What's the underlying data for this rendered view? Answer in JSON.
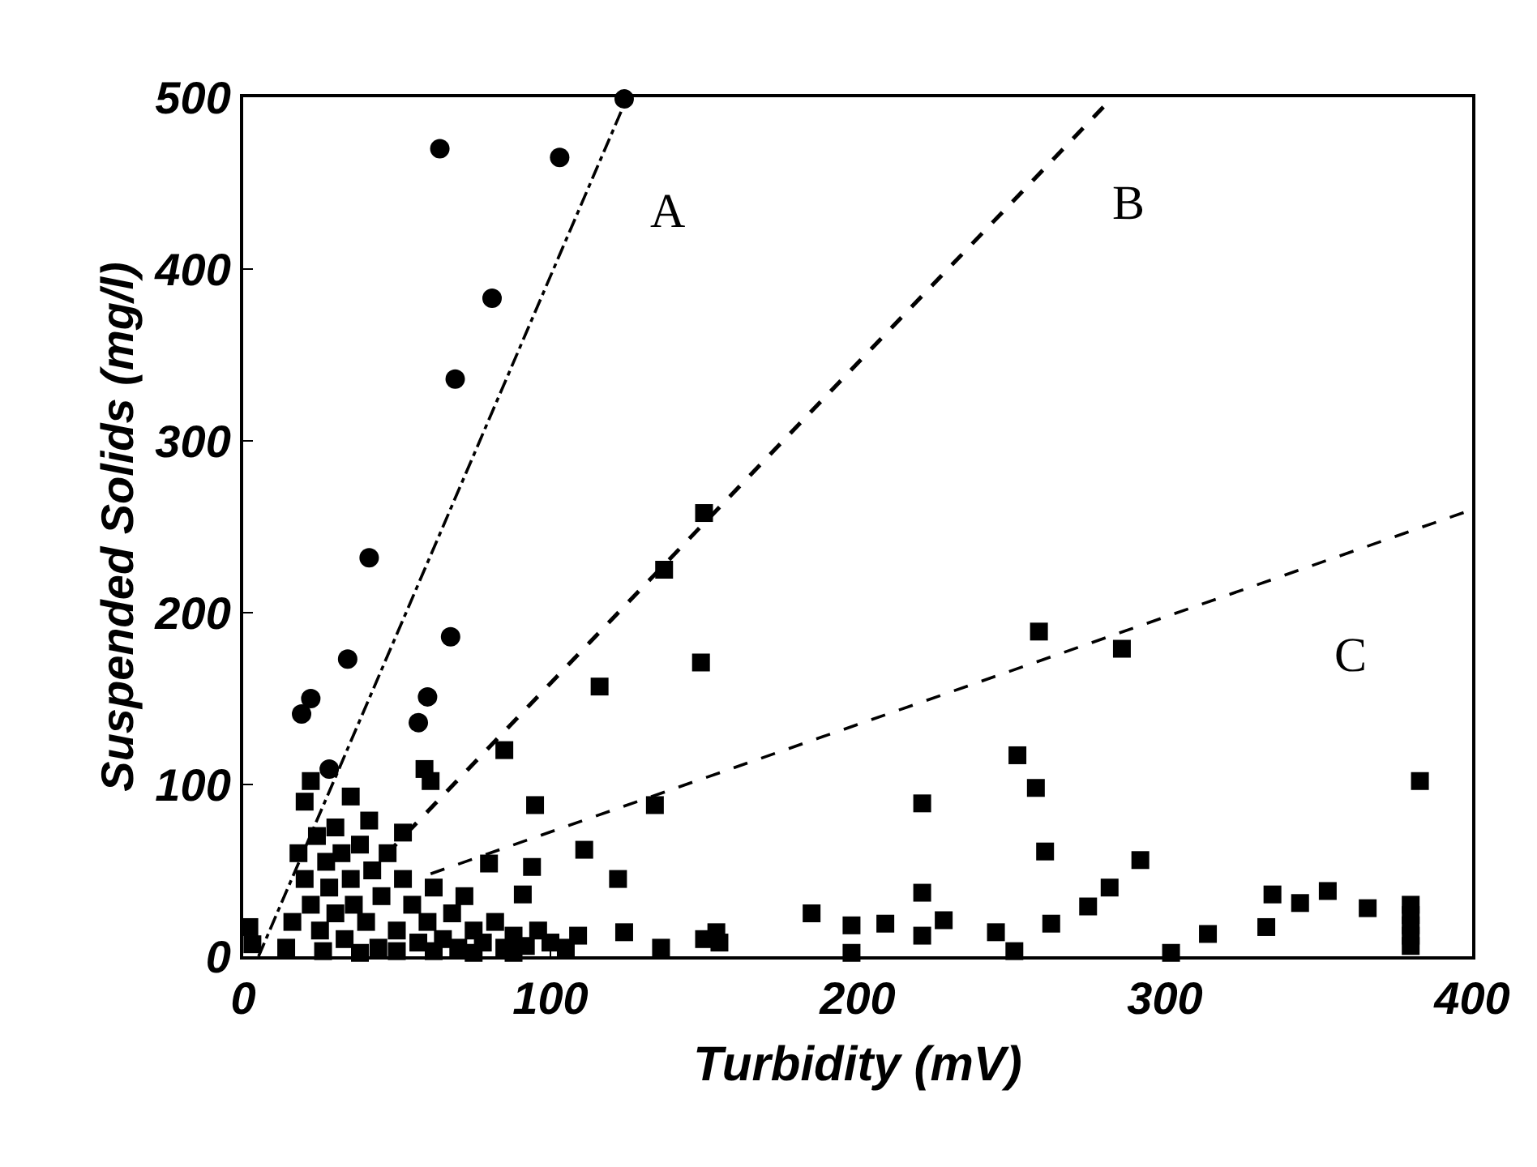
{
  "chart_data": {
    "type": "scatter",
    "xlabel": "Turbidity (mV)",
    "ylabel": "Suspended Solids (mg/l)",
    "xlim": [
      0,
      400
    ],
    "ylim": [
      0,
      500
    ],
    "xticks": [
      0,
      100,
      200,
      300,
      400
    ],
    "yticks": [
      0,
      100,
      200,
      300,
      400,
      500
    ],
    "legend": false,
    "series": [
      {
        "marker": "circle",
        "color": "#000000",
        "x": [
          64,
          103,
          124,
          81,
          69,
          41,
          67.5,
          34,
          22,
          19,
          60,
          57,
          28
        ],
        "values": [
          470,
          465,
          499,
          383,
          336,
          232,
          186,
          173,
          150,
          141,
          151,
          136,
          109
        ]
      },
      {
        "marker": "square",
        "color": "#000000",
        "x": [
          150,
          137,
          149,
          116,
          85,
          95,
          134,
          111,
          94,
          122,
          91,
          80,
          35,
          41,
          52,
          59,
          61,
          22,
          20,
          2,
          3,
          109,
          124,
          136,
          154,
          259,
          286,
          221,
          252,
          258,
          261,
          292,
          383,
          282,
          275,
          221,
          185,
          198,
          198,
          209,
          221,
          228,
          245,
          251,
          263,
          302,
          314,
          333,
          335,
          344,
          353,
          366,
          380,
          380,
          380,
          380,
          380,
          150,
          155,
          18,
          20,
          22,
          24,
          25,
          27,
          28,
          30,
          30,
          32,
          33,
          35,
          36,
          38,
          40,
          42,
          44,
          45,
          47,
          50,
          52,
          55,
          57,
          60,
          62,
          65,
          68,
          70,
          72,
          75,
          78,
          82,
          85,
          88,
          92,
          96,
          100,
          105,
          26,
          38,
          50,
          62,
          75,
          88,
          14,
          16
        ],
        "values": [
          258,
          225,
          171,
          157,
          120,
          88,
          88,
          62,
          52,
          45,
          36,
          54,
          93,
          79,
          72,
          109,
          102,
          102,
          90,
          17,
          7,
          12,
          14,
          5,
          14,
          189,
          179,
          89,
          117,
          98,
          61,
          56,
          102,
          40,
          29,
          37,
          25,
          18,
          2,
          19,
          12,
          21,
          14,
          3,
          19,
          2,
          13,
          17,
          36,
          31,
          38,
          28,
          30,
          24,
          18,
          12,
          6,
          10,
          8,
          60,
          45,
          30,
          70,
          15,
          55,
          40,
          25,
          75,
          60,
          10,
          45,
          30,
          65,
          20,
          50,
          5,
          35,
          60,
          15,
          45,
          30,
          8,
          20,
          40,
          10,
          25,
          5,
          35,
          15,
          8,
          20,
          5,
          12,
          6,
          15,
          8,
          5,
          3,
          2,
          3,
          3,
          2,
          2,
          5,
          20
        ]
      },
      {
        "type": "line",
        "name": "A",
        "line_style": "dotted",
        "color": "#000000",
        "x": [
          5,
          125
        ],
        "values": [
          0,
          500
        ]
      },
      {
        "type": "line",
        "name": "B",
        "line_style": "dashed",
        "color": "#000000",
        "x": [
          40,
          283
        ],
        "values": [
          47,
          500
        ]
      },
      {
        "type": "line",
        "name": "C",
        "line_style": "dashed",
        "color": "#000000",
        "x": [
          61,
          400
        ],
        "values": [
          48,
          260
        ]
      }
    ]
  }
}
